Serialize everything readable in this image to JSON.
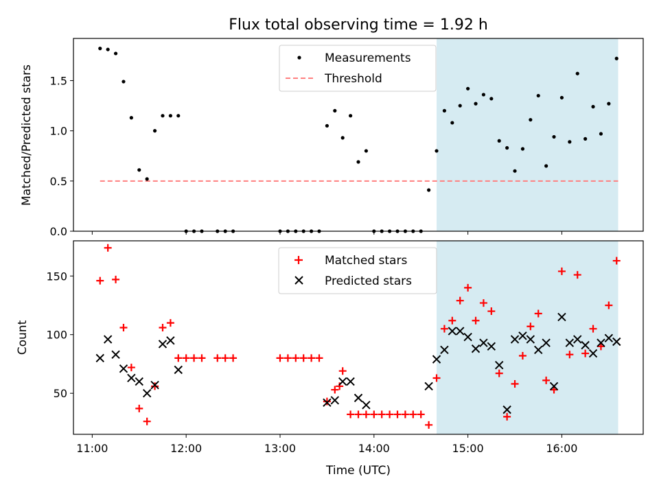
{
  "title": "Flux total observing time = 1.92 h",
  "xlabel": "Time (UTC)",
  "colors": {
    "measurements": "#000000",
    "threshold": "#ff7f7f",
    "matched": "#ff0000",
    "predicted": "#000000",
    "shaded": "#add8e6"
  },
  "chart_data": [
    {
      "type": "scatter",
      "ylabel": "Matched/Predicted stars",
      "ylim": [
        0,
        1.92
      ],
      "yticks": [
        0.0,
        0.5,
        1.0,
        1.5
      ],
      "yticklabels": [
        "0.0",
        "0.5",
        "1.0",
        "1.5"
      ],
      "xlim": [
        "10:48",
        "16:52"
      ],
      "xticks": [
        "11:00",
        "12:00",
        "13:00",
        "14:00",
        "15:00",
        "16:00"
      ],
      "legend": {
        "location": "upper center",
        "entries": [
          "Measurements",
          "Threshold"
        ]
      },
      "shaded_span": [
        "14:40",
        "16:36"
      ],
      "threshold": {
        "name": "Threshold",
        "value": 0.5,
        "x": [
          "11:05",
          "16:36"
        ]
      },
      "series": [
        {
          "name": "Measurements",
          "marker": "dot",
          "x": [
            "11:05",
            "11:10",
            "11:15",
            "11:20",
            "11:25",
            "11:30",
            "11:35",
            "11:40",
            "11:45",
            "11:50",
            "11:55",
            "12:00",
            "12:05",
            "12:10",
            "12:20",
            "12:25",
            "12:30",
            "13:00",
            "13:05",
            "13:10",
            "13:15",
            "13:20",
            "13:25",
            "13:30",
            "13:35",
            "13:40",
            "13:45",
            "13:50",
            "13:55",
            "14:00",
            "14:05",
            "14:10",
            "14:15",
            "14:20",
            "14:25",
            "14:30",
            "14:35",
            "14:40",
            "14:45",
            "14:50",
            "14:55",
            "15:00",
            "15:05",
            "15:10",
            "15:15",
            "15:20",
            "15:25",
            "15:30",
            "15:35",
            "15:40",
            "15:45",
            "15:50",
            "15:55",
            "16:00",
            "16:05",
            "16:10",
            "16:15",
            "16:20",
            "16:25",
            "16:30",
            "16:35"
          ],
          "y": [
            1.82,
            1.81,
            1.77,
            1.49,
            1.13,
            0.61,
            0.52,
            1.0,
            1.15,
            1.15,
            1.15,
            0,
            0,
            0,
            0,
            0,
            0,
            0,
            0,
            0,
            0,
            0,
            0,
            1.05,
            1.2,
            0.93,
            1.15,
            0.69,
            0.8,
            0,
            0,
            0,
            0,
            0,
            0,
            0,
            0.41,
            0.8,
            1.2,
            1.08,
            1.25,
            1.42,
            1.27,
            1.36,
            1.32,
            0.9,
            0.83,
            0.6,
            0.82,
            1.11,
            1.35,
            0.65,
            0.94,
            1.33,
            0.89,
            1.57,
            0.92,
            1.24,
            0.97,
            1.27,
            1.72
          ]
        }
      ]
    },
    {
      "type": "scatter",
      "ylabel": "Count",
      "ylim": [
        15,
        180
      ],
      "yticks": [
        50,
        100,
        150
      ],
      "yticklabels": [
        "50",
        "100",
        "150"
      ],
      "xlim": [
        "10:48",
        "16:52"
      ],
      "xticks": [
        "11:00",
        "12:00",
        "13:00",
        "14:00",
        "15:00",
        "16:00"
      ],
      "xticklabels": [
        "11:00",
        "12:00",
        "13:00",
        "14:00",
        "15:00",
        "16:00"
      ],
      "legend": {
        "location": "upper center",
        "entries": [
          "Matched stars",
          "Predicted stars"
        ]
      },
      "shaded_span": [
        "14:40",
        "16:36"
      ],
      "series": [
        {
          "name": "Matched stars",
          "marker": "plus",
          "x": [
            "11:05",
            "11:10",
            "11:15",
            "11:20",
            "11:25",
            "11:30",
            "11:35",
            "11:40",
            "11:45",
            "11:50",
            "11:55",
            "12:00",
            "12:05",
            "12:10",
            "12:20",
            "12:25",
            "12:30",
            "13:00",
            "13:05",
            "13:10",
            "13:15",
            "13:20",
            "13:25",
            "13:30",
            "13:35",
            "13:38",
            "13:40",
            "13:45",
            "13:50",
            "13:55",
            "14:00",
            "14:05",
            "14:10",
            "14:15",
            "14:20",
            "14:25",
            "14:30",
            "14:35",
            "14:40",
            "14:45",
            "14:50",
            "14:55",
            "15:00",
            "15:05",
            "15:10",
            "15:15",
            "15:20",
            "15:25",
            "15:30",
            "15:35",
            "15:40",
            "15:45",
            "15:50",
            "15:55",
            "16:00",
            "16:05",
            "16:10",
            "16:15",
            "16:20",
            "16:25",
            "16:30",
            "16:35"
          ],
          "y": [
            146,
            174,
            147,
            106,
            72,
            37,
            26,
            56,
            106,
            110,
            80,
            80,
            80,
            80,
            80,
            80,
            80,
            80,
            80,
            80,
            80,
            80,
            80,
            43,
            53,
            56,
            69,
            32,
            32,
            32,
            32,
            32,
            32,
            32,
            32,
            32,
            32,
            23,
            63,
            105,
            112,
            129,
            140,
            112,
            127,
            120,
            67,
            30,
            58,
            82,
            107,
            118,
            61,
            53,
            154,
            83,
            151,
            84,
            105,
            90,
            125,
            163
          ]
        },
        {
          "name": "Predicted stars",
          "marker": "x",
          "x": [
            "11:05",
            "11:10",
            "11:15",
            "11:20",
            "11:25",
            "11:30",
            "11:35",
            "11:40",
            "11:45",
            "11:50",
            "11:55",
            "13:30",
            "13:35",
            "13:40",
            "13:45",
            "13:50",
            "13:55",
            "14:35",
            "14:40",
            "14:45",
            "14:50",
            "14:55",
            "15:00",
            "15:05",
            "15:10",
            "15:15",
            "15:20",
            "15:25",
            "15:30",
            "15:35",
            "15:40",
            "15:45",
            "15:50",
            "15:55",
            "16:00",
            "16:05",
            "16:10",
            "16:15",
            "16:20",
            "16:25",
            "16:30",
            "16:35"
          ],
          "y": [
            80,
            96,
            83,
            71,
            63,
            60,
            50,
            57,
            92,
            95,
            70,
            42,
            44,
            60,
            60,
            46,
            40,
            56,
            79,
            87,
            103,
            103,
            98,
            88,
            93,
            90,
            74,
            36,
            96,
            99,
            96,
            87,
            93,
            56,
            115,
            93,
            96,
            91,
            84,
            93,
            97,
            94
          ]
        }
      ]
    }
  ]
}
